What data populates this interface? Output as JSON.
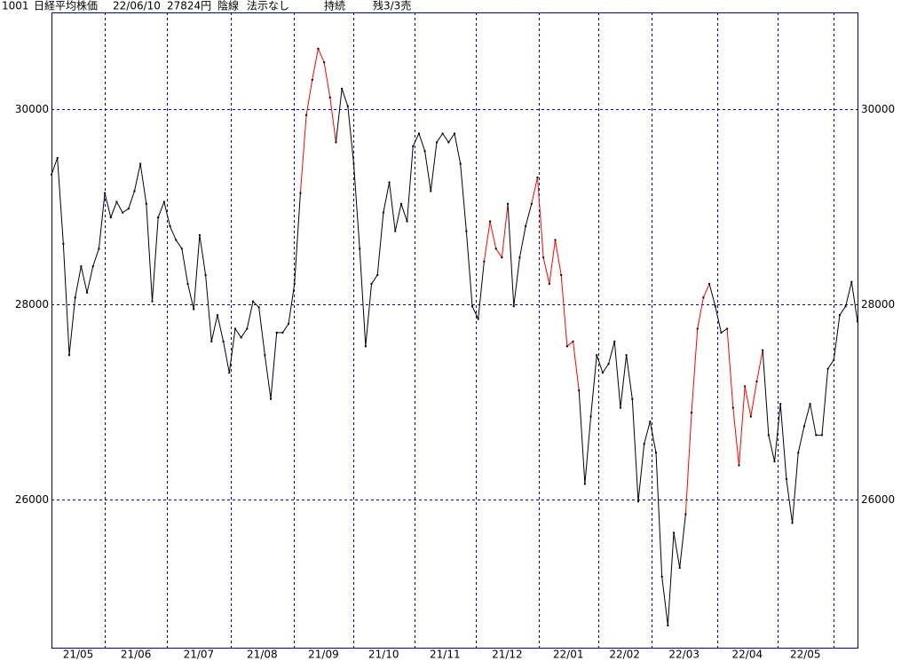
{
  "chart_data": {
    "type": "line",
    "header": [
      "1001",
      "日経平均株価",
      "22/06/10",
      "27824円",
      "陰線",
      "法示なし",
      "持続",
      "残3/3売"
    ],
    "values": [
      29330,
      29500,
      28620,
      27480,
      28070,
      28390,
      28120,
      28390,
      28570,
      29140,
      28890,
      29050,
      28940,
      28980,
      29160,
      29440,
      29030,
      28030,
      28890,
      29050,
      28800,
      28660,
      28570,
      28210,
      27950,
      28710,
      28300,
      27620,
      27890,
      27620,
      27300,
      27750,
      27660,
      27750,
      28030,
      27970,
      27480,
      27030,
      27710,
      27710,
      27800,
      28210,
      29140,
      29940,
      30300,
      30620,
      30480,
      30120,
      29660,
      30210,
      30030,
      29440,
      28570,
      27570,
      28210,
      28300,
      28940,
      29250,
      28750,
      29030,
      28850,
      29620,
      29750,
      29570,
      29160,
      29660,
      29750,
      29660,
      29750,
      29440,
      28750,
      27980,
      27850,
      28440,
      28850,
      28570,
      28480,
      29030,
      27980,
      28480,
      28800,
      29030,
      29300,
      28480,
      28210,
      28660,
      28300,
      27570,
      27620,
      27120,
      26160,
      26850,
      27480,
      27300,
      27390,
      27620,
      26940,
      27480,
      27030,
      25980,
      26570,
      26800,
      26480,
      25210,
      24710,
      25660,
      25300,
      25850,
      26890,
      27750,
      28070,
      28210,
      27980,
      27710,
      27750,
      26940,
      26350,
      27160,
      26850,
      27210,
      27530,
      26660,
      26390,
      26980,
      26210,
      25760,
      26480,
      26750,
      26980,
      26660,
      26660,
      27340,
      27430,
      27890,
      27980,
      28230,
      27824
    ],
    "segment_colors": [
      "#000",
      "#000",
      "#000",
      "#000",
      "#000",
      "#000",
      "#000",
      "#000",
      "#000",
      "#000",
      "#000",
      "#000",
      "#000",
      "#000",
      "#000",
      "#000",
      "#000",
      "#000",
      "#000",
      "#000",
      "#000",
      "#000",
      "#000",
      "#000",
      "#000",
      "#000",
      "#000",
      "#000",
      "#000",
      "#000",
      "#000",
      "#000",
      "#000",
      "#000",
      "#000",
      "#000",
      "#000",
      "#000",
      "#000",
      "#000",
      "#000",
      "#000",
      "#000",
      "#f00",
      "#f00",
      "#f00",
      "#f00",
      "#f00",
      "#f00",
      "#000",
      "#000",
      "#000",
      "#000",
      "#000",
      "#000",
      "#000",
      "#000",
      "#000",
      "#000",
      "#000",
      "#000",
      "#000",
      "#000",
      "#000",
      "#000",
      "#000",
      "#000",
      "#000",
      "#000",
      "#000",
      "#000",
      "#000",
      "#000",
      "#000",
      "#f00",
      "#f00",
      "#f00",
      "#f00",
      "#000",
      "#000",
      "#000",
      "#000",
      "#f00",
      "#f00",
      "#f00",
      "#f00",
      "#f00",
      "#f00",
      "#f00",
      "#f00",
      "#000",
      "#000",
      "#000",
      "#000",
      "#000",
      "#000",
      "#000",
      "#000",
      "#000",
      "#000",
      "#000",
      "#000",
      "#000",
      "#000",
      "#000",
      "#000",
      "#000",
      "#000",
      "#f00",
      "#f00",
      "#f00",
      "#f00",
      "#000",
      "#000",
      "#000",
      "#f00",
      "#f00",
      "#f00",
      "#f00",
      "#f00",
      "#f00",
      "#000",
      "#000",
      "#000",
      "#000",
      "#000",
      "#000",
      "#000",
      "#000",
      "#000",
      "#000",
      "#000",
      "#000",
      "#000",
      "#000",
      "#000",
      "#000"
    ],
    "point_color": "#000",
    "xlim": [
      0,
      136
    ],
    "xticks": [
      9.0,
      19.5,
      30.2,
      40.9,
      50.9,
      61.2,
      71.6,
      82.2,
      92.2,
      101.2,
      112.3,
      122.5,
      131.9
    ],
    "month_labels": [
      "21/05",
      "21/06",
      "21/07",
      "21/08",
      "21/09",
      "21/10",
      "21/11",
      "21/12",
      "22/01",
      "22/02",
      "22/03",
      "22/04",
      "22/05"
    ],
    "ylim": [
      24482,
      30991
    ],
    "yticks": [
      26000,
      28000,
      30000
    ],
    "grid": true
  }
}
